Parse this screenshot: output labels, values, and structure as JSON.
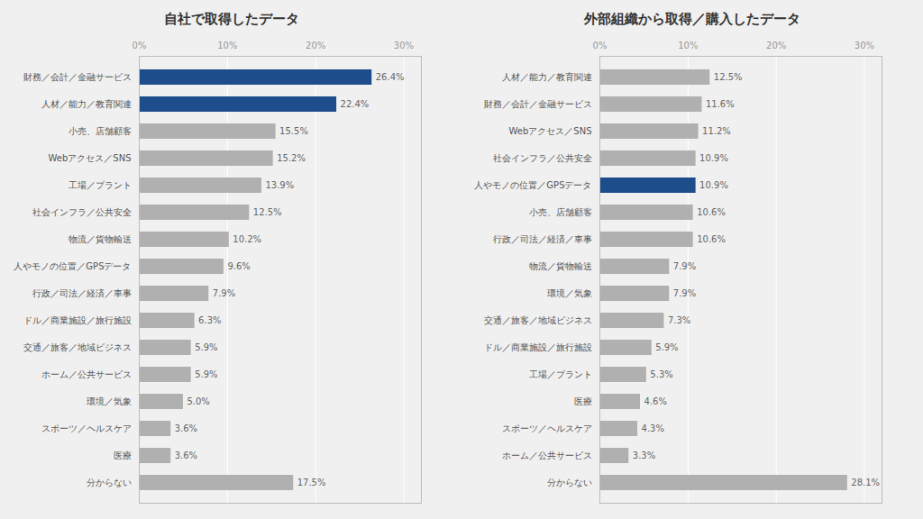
{
  "chart_data": [
    {
      "type": "bar",
      "orientation": "horizontal",
      "title": "自社で取得したデータ",
      "categories": [
        "財務／会計／金融サービス",
        "人材／能力／教育関連",
        "小売、店舗顧客",
        "Webアクセス／SNS",
        "工場／プラント",
        "社会インフラ／公共安全",
        "物流／貨物輸送",
        "人やモノの位置／GPSデータ",
        "行政／司法／経済／車事",
        "ドル／商業施設／旅行施設",
        "交通／旅客／地域ビジネス",
        "ホーム／公共サービス",
        "環境／気象",
        "スポーツ／ヘルスケア",
        "医療",
        "分からない"
      ],
      "values": [
        26.4,
        22.4,
        15.5,
        15.2,
        13.9,
        12.5,
        10.2,
        9.6,
        7.9,
        6.3,
        5.9,
        5.9,
        5.0,
        3.6,
        3.6,
        17.5
      ],
      "value_labels": [
        "26.4%",
        "22.4%",
        "15.5%",
        "15.2%",
        "13.9%",
        "12.5%",
        "10.2%",
        "9.6%",
        "7.9%",
        "6.3%",
        "5.9%",
        "5.9%",
        "5.0%",
        "3.6%",
        "3.6%",
        "17.5%"
      ],
      "colors": [
        "#1e4d8c",
        "#1e4d8c",
        "#b0b0b0",
        "#b0b0b0",
        "#b0b0b0",
        "#b0b0b0",
        "#b0b0b0",
        "#b0b0b0",
        "#b0b0b0",
        "#b0b0b0",
        "#b0b0b0",
        "#b0b0b0",
        "#b0b0b0",
        "#b0b0b0",
        "#b0b0b0",
        "#b0b0b0"
      ],
      "xlim": [
        0,
        32
      ],
      "xticks": [
        {
          "value": 0,
          "label": "0%"
        },
        {
          "value": 10,
          "label": "10%"
        },
        {
          "value": 20,
          "label": "20%"
        },
        {
          "value": 30,
          "label": "30%"
        }
      ],
      "grid": true,
      "data_labels": true
    },
    {
      "type": "bar",
      "orientation": "horizontal",
      "title": "外部組織から取得／購入したデータ",
      "categories": [
        "人材／能力／教育関連",
        "財務／会計／金融サービス",
        "Webアクセス／SNS",
        "社会インフラ／公共安全",
        "人やモノの位置／GPSデータ",
        "小売、店舗顧客",
        "行政／司法／経済／車事",
        "物流／貨物輸送",
        "環境／気象",
        "交通／旅客／地域ビジネス",
        "ドル／商業施設／旅行施設",
        "工場／プラント",
        "医療",
        "スポーツ／ヘルスケア",
        "ホーム／公共サービス",
        "分からない"
      ],
      "values": [
        12.5,
        11.6,
        11.2,
        10.9,
        10.9,
        10.6,
        10.6,
        7.9,
        7.9,
        7.3,
        5.9,
        5.3,
        4.6,
        4.3,
        3.3,
        28.1
      ],
      "value_labels": [
        "12.5%",
        "11.6%",
        "11.2%",
        "10.9%",
        "10.9%",
        "10.6%",
        "10.6%",
        "7.9%",
        "7.9%",
        "7.3%",
        "5.9%",
        "5.3%",
        "4.6%",
        "4.3%",
        "3.3%",
        "28.1%"
      ],
      "colors": [
        "#b0b0b0",
        "#b0b0b0",
        "#b0b0b0",
        "#b0b0b0",
        "#1e4d8c",
        "#b0b0b0",
        "#b0b0b0",
        "#b0b0b0",
        "#b0b0b0",
        "#b0b0b0",
        "#b0b0b0",
        "#b0b0b0",
        "#b0b0b0",
        "#b0b0b0",
        "#b0b0b0",
        "#b0b0b0"
      ],
      "xlim": [
        0,
        32
      ],
      "xticks": [
        {
          "value": 0,
          "label": "0%"
        },
        {
          "value": 10,
          "label": "10%"
        },
        {
          "value": 20,
          "label": "20%"
        },
        {
          "value": 30,
          "label": "30%"
        }
      ],
      "grid": true,
      "data_labels": true
    }
  ]
}
